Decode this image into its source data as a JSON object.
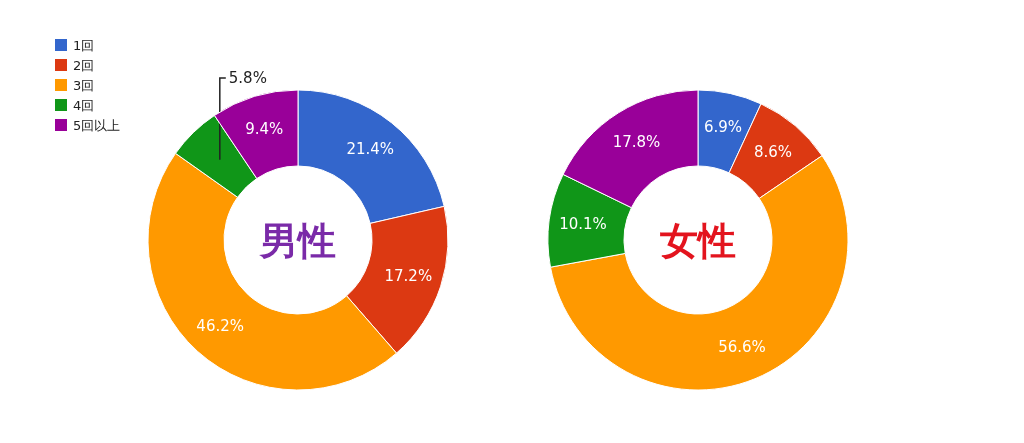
{
  "chart_data": [
    {
      "type": "donut",
      "title": "男性",
      "categories": [
        "1回",
        "2回",
        "3回",
        "4回",
        "5回以上"
      ],
      "values": [
        21.4,
        17.2,
        46.2,
        5.8,
        9.4
      ],
      "value_labels": [
        "21.4%",
        "17.2%",
        "46.2%",
        "5.8%",
        "9.4%"
      ],
      "colors": [
        "#3366cc",
        "#dc3912",
        "#ff9900",
        "#109618",
        "#990099"
      ],
      "legend": "top left"
    },
    {
      "type": "donut",
      "title": "女性",
      "categories": [
        null,
        null,
        null,
        null,
        null
      ],
      "values": [
        6.9,
        8.6,
        56.6,
        10.1,
        17.8
      ],
      "value_labels": [
        "6.9%",
        "8.6%",
        "56.6%",
        "10.1%",
        "17.8%"
      ],
      "colors": [
        "#3366cc",
        "#dc3912",
        "#ff9900",
        "#109618",
        "#990099"
      ],
      "legend": false
    }
  ]
}
